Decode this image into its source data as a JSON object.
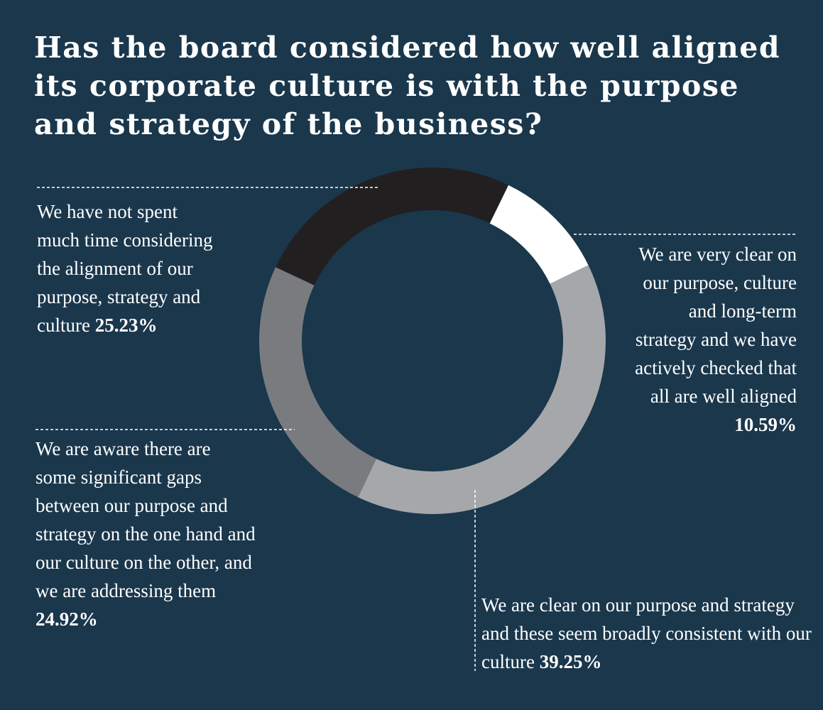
{
  "chart_data": {
    "type": "pie",
    "style": "donut",
    "title": "Has the board considered how well aligned its corporate culture is with the purpose and strategy of the business?",
    "slices": [
      {
        "label": "We are very clear on our purpose, culture and long-term strategy and we have actively checked that all are well aligned",
        "value": 10.59,
        "value_label": "10.59%",
        "color": "#ffffff"
      },
      {
        "label": "We are clear on our purpose and strategy and these seem broadly consistent with our culture",
        "value": 39.25,
        "value_label": "39.25%",
        "color": "#a6a7aa"
      },
      {
        "label": "We are aware there are some significant gaps between our purpose and strategy on the one hand and our culture on the other, and we are addressing them",
        "value": 24.92,
        "value_label": "24.92%",
        "color": "#7a7b7e"
      },
      {
        "label": "We have not spent much time considering the alignment of our purpose, strategy and culture",
        "value": 25.23,
        "value_label": "25.23%",
        "color": "#221f20"
      }
    ],
    "start_angle_deg": 26
  }
}
